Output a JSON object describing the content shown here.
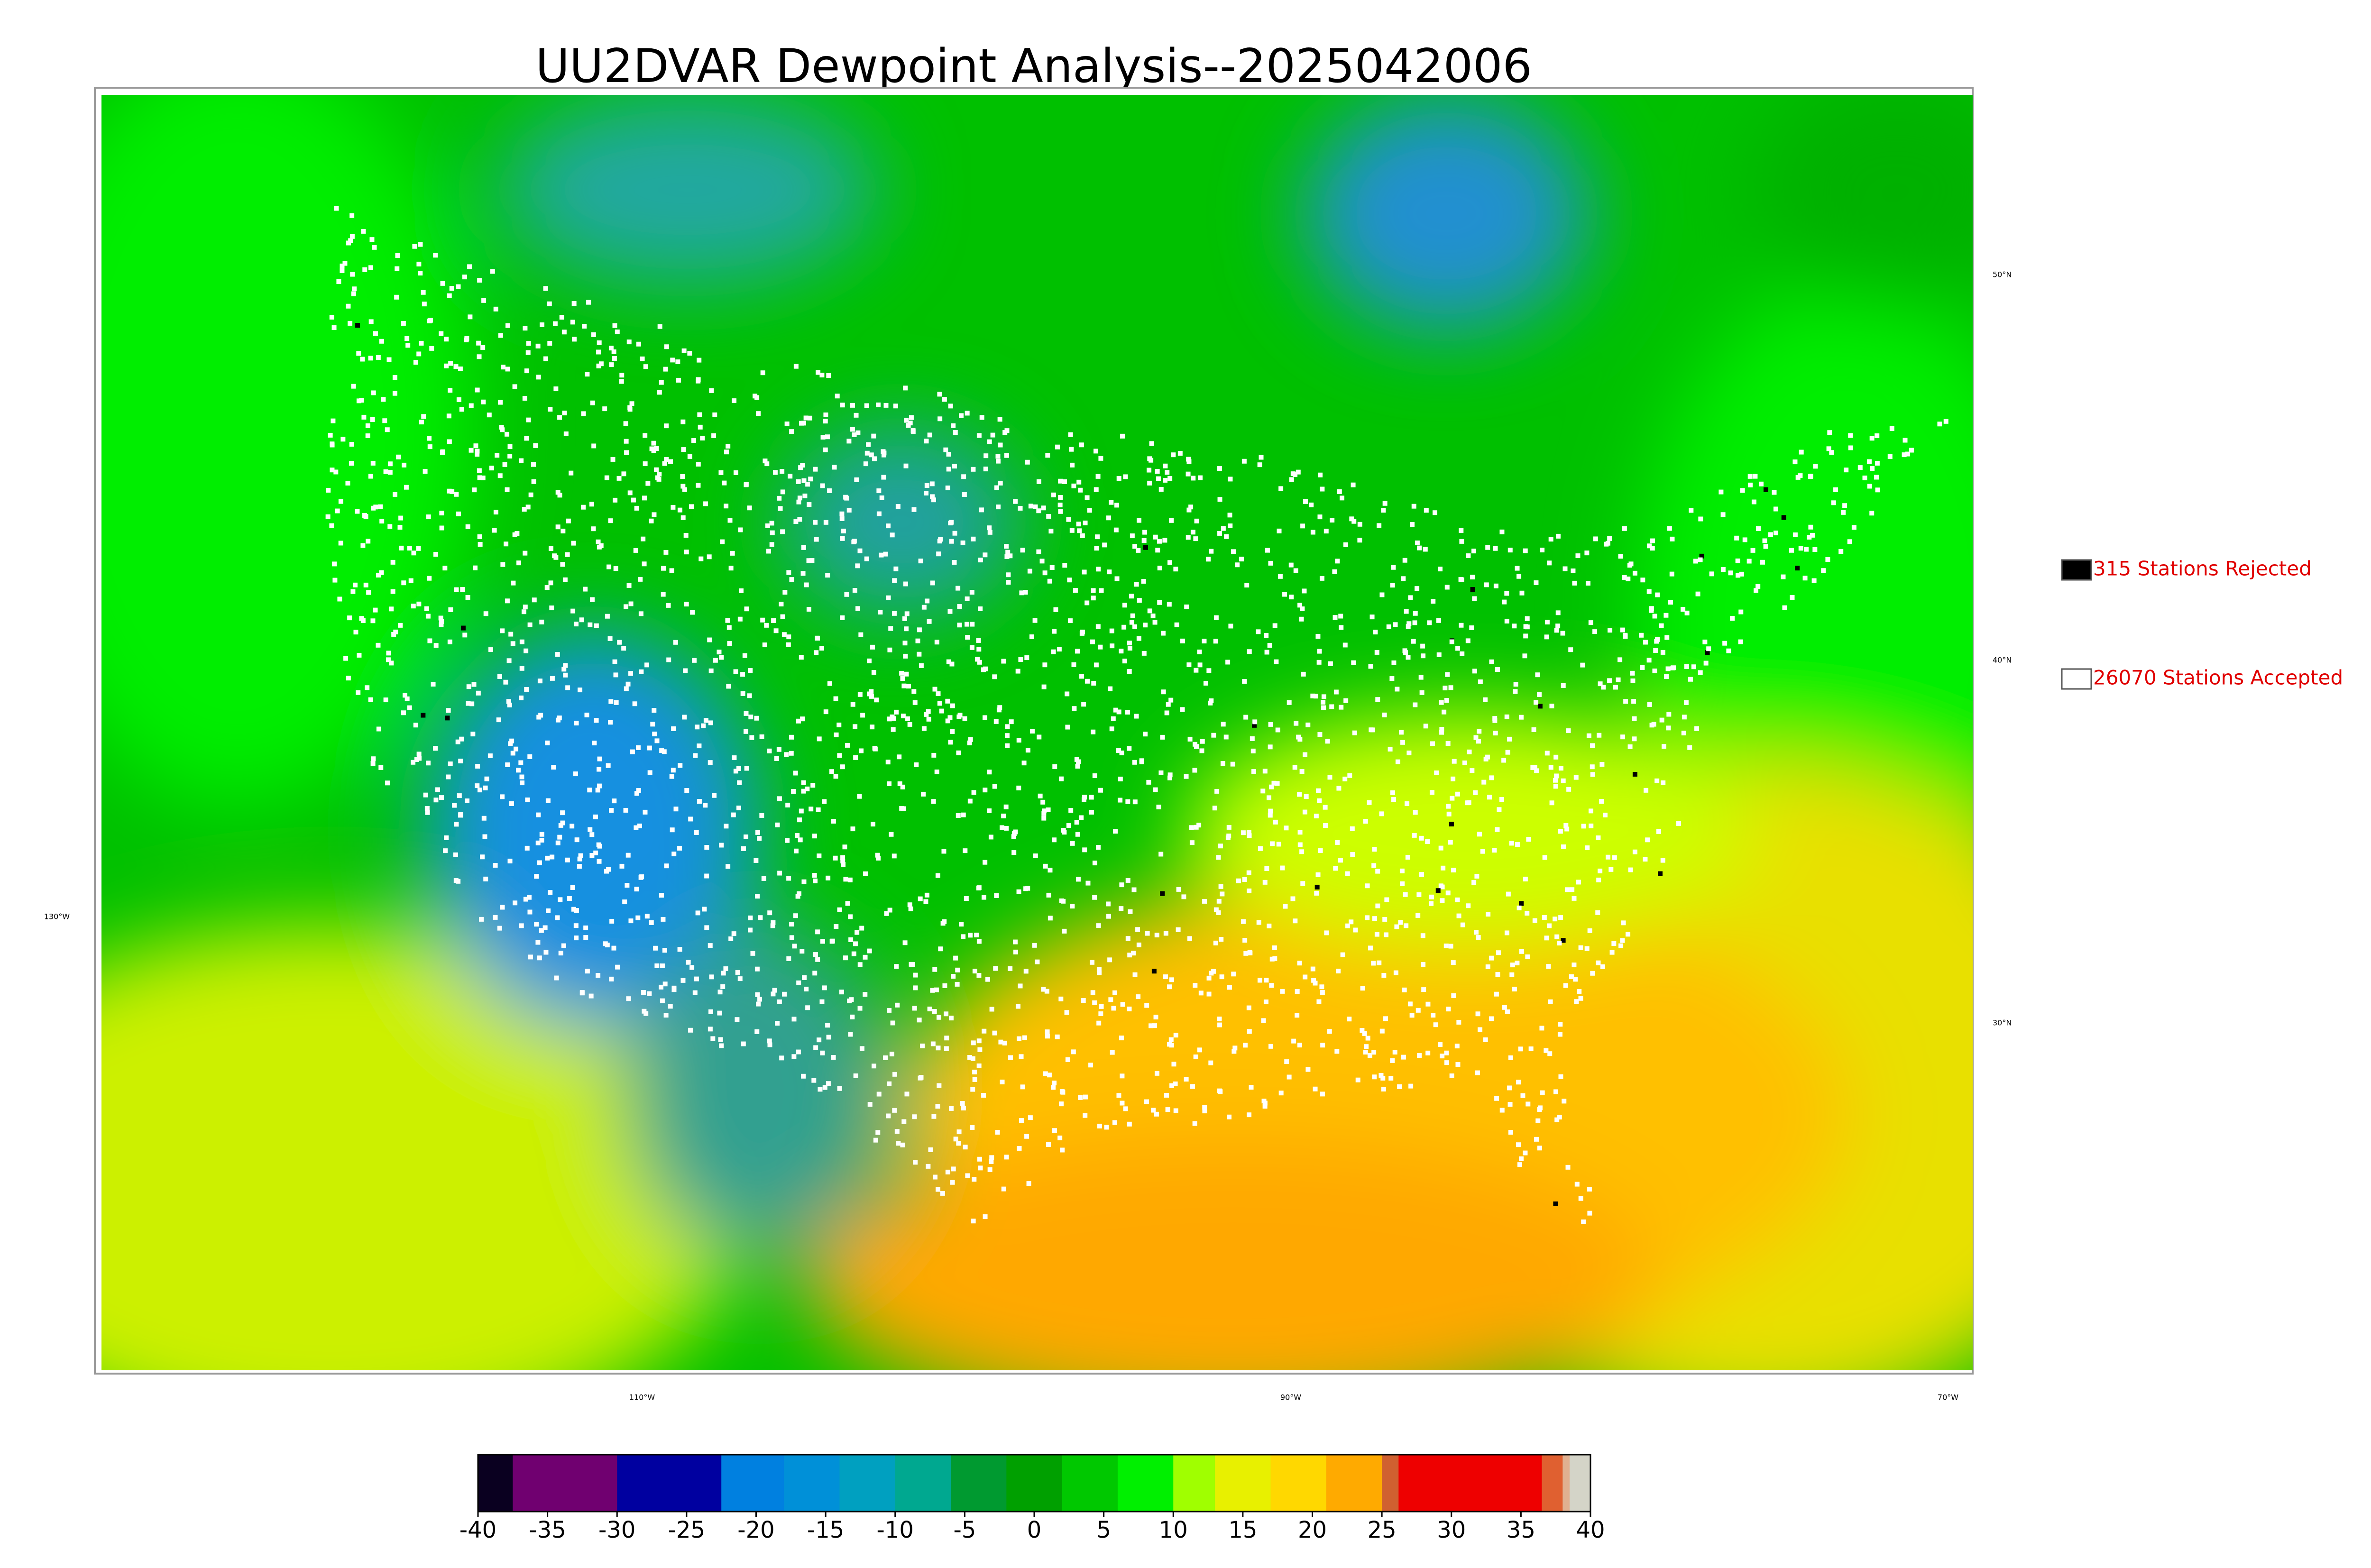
{
  "title": "UU2DVAR Dewpoint Analysis--2025042006",
  "legend": [
    {
      "label": "315 Stations Rejected",
      "color": "#000000"
    },
    {
      "label": "26070 Stations Accepted",
      "color": "#ffffff"
    }
  ],
  "latitude_labels": [
    "50°N",
    "40°N",
    "30°N"
  ],
  "longitude_labels": [
    "130°W",
    "110°W",
    "90°W",
    "70°W"
  ],
  "colorbar": {
    "range": [
      -40,
      40
    ],
    "ticks": [
      -40,
      -35,
      -30,
      -25,
      -20,
      -15,
      -10,
      -5,
      0,
      5,
      10,
      15,
      20,
      25,
      30,
      35,
      40
    ],
    "segments": [
      {
        "from": -40,
        "to": -37.5,
        "color": "#0a0020"
      },
      {
        "from": -37.5,
        "to": -30,
        "color": "#700070"
      },
      {
        "from": -30,
        "to": -22.5,
        "color": "#0000a0"
      },
      {
        "from": -22.5,
        "to": -18,
        "color": "#0080e0"
      },
      {
        "from": -18,
        "to": -14,
        "color": "#0090d8"
      },
      {
        "from": -14,
        "to": -10,
        "color": "#00a0c0"
      },
      {
        "from": -10,
        "to": -6,
        "color": "#00a890"
      },
      {
        "from": -6,
        "to": -2,
        "color": "#009a30"
      },
      {
        "from": -2,
        "to": 2,
        "color": "#00a000"
      },
      {
        "from": 2,
        "to": 6,
        "color": "#00c800"
      },
      {
        "from": 6,
        "to": 10,
        "color": "#00f000"
      },
      {
        "from": 10,
        "to": 13,
        "color": "#a0ff00"
      },
      {
        "from": 13,
        "to": 17,
        "color": "#e8f000"
      },
      {
        "from": 17,
        "to": 21,
        "color": "#ffd800"
      },
      {
        "from": 21,
        "to": 25,
        "color": "#ffaa00"
      },
      {
        "from": 25,
        "to": 26.2,
        "color": "#d06030"
      },
      {
        "from": 26.2,
        "to": 36.5,
        "color": "#ee0000"
      },
      {
        "from": 36.5,
        "to": 38,
        "color": "#e06030"
      },
      {
        "from": 38,
        "to": 38.5,
        "color": "#e0b090"
      },
      {
        "from": 38.5,
        "to": 40,
        "color": "#d4d4c8"
      }
    ]
  }
}
